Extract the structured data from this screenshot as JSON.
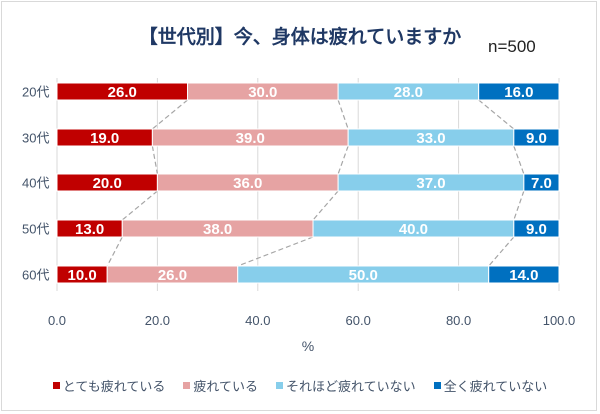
{
  "chart_data": {
    "type": "bar",
    "orientation": "horizontal",
    "stacked": true,
    "title": "【世代別】今、身体は疲れていますか",
    "annotation": "n=500",
    "categories": [
      "20代",
      "30代",
      "40代",
      "50代",
      "60代"
    ],
    "series": [
      {
        "name": "とても疲れている",
        "color": "#c00000",
        "values": [
          26.0,
          19.0,
          20.0,
          13.0,
          10.0
        ]
      },
      {
        "name": "疲れている",
        "color": "#e6a3a3",
        "values": [
          30.0,
          39.0,
          36.0,
          38.0,
          26.0
        ]
      },
      {
        "name": "それほど疲れていない",
        "color": "#87ceeb",
        "values": [
          28.0,
          33.0,
          37.0,
          40.0,
          50.0
        ]
      },
      {
        "name": "全く疲れていない",
        "color": "#0070c0",
        "values": [
          16.0,
          9.0,
          7.0,
          9.0,
          14.0
        ]
      }
    ],
    "xlabel": "%",
    "xlim": [
      0,
      100
    ],
    "xticks": [
      "0.0",
      "20.0",
      "40.0",
      "60.0",
      "80.0",
      "100.0"
    ],
    "grid": true,
    "series_lines": true,
    "legend": "bottom"
  }
}
